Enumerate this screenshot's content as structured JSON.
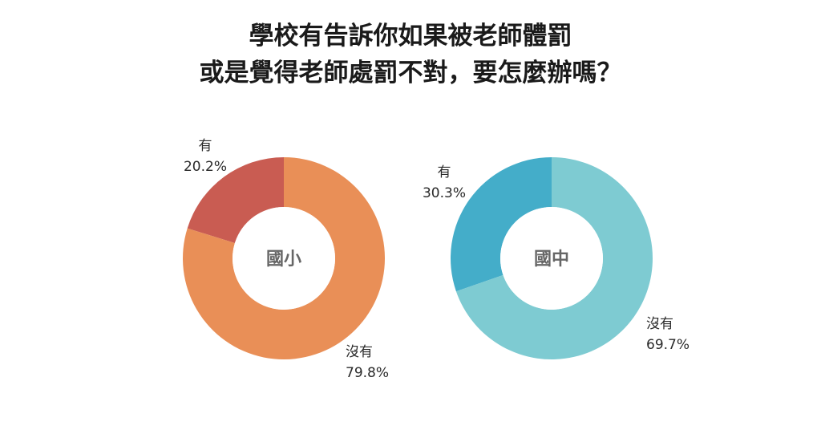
{
  "title": {
    "line1": "學校有告訴你如果被老師體罰",
    "line2": "或是覺得老師處罰不對，要怎麼辦嗎？"
  },
  "chart_data": [
    {
      "type": "pie",
      "donut": true,
      "center_label": "國小",
      "slices": [
        {
          "label": "有",
          "value": 20.2,
          "value_text": "20.2%",
          "color": "#c95c52"
        },
        {
          "label": "沒有",
          "value": 79.8,
          "value_text": "79.8%",
          "color": "#e98f57"
        }
      ]
    },
    {
      "type": "pie",
      "donut": true,
      "center_label": "國中",
      "slices": [
        {
          "label": "有",
          "value": 30.3,
          "value_text": "30.3%",
          "color": "#44adc9"
        },
        {
          "label": "沒有",
          "value": 69.7,
          "value_text": "69.7%",
          "color": "#7ecbd2"
        }
      ]
    }
  ]
}
